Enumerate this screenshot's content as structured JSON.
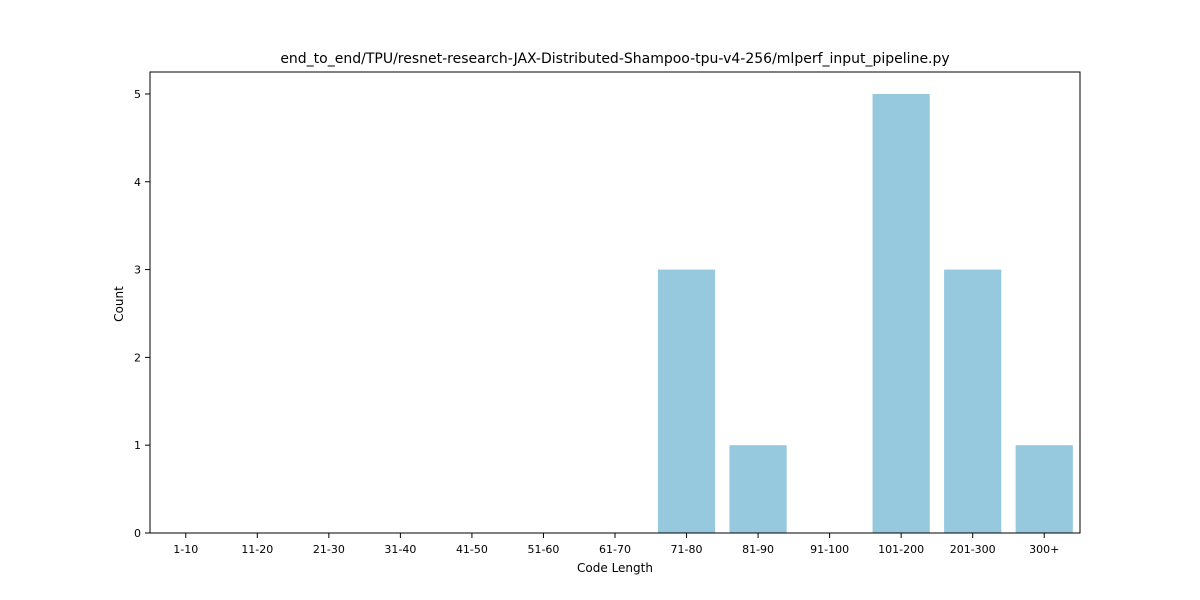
{
  "chart_data": {
    "type": "bar",
    "title": "end_to_end/TPU/resnet-research-JAX-Distributed-Shampoo-tpu-v4-256/mlperf_input_pipeline.py",
    "xlabel": "Code Length",
    "ylabel": "Count",
    "categories": [
      "1-10",
      "11-20",
      "21-30",
      "31-40",
      "41-50",
      "51-60",
      "61-70",
      "71-80",
      "81-90",
      "91-100",
      "101-200",
      "201-300",
      "300+"
    ],
    "values": [
      0,
      0,
      0,
      0,
      0,
      0,
      0,
      3,
      1,
      0,
      5,
      3,
      1
    ],
    "ylim": [
      0,
      5.25
    ],
    "yticks": [
      0,
      1,
      2,
      3,
      4,
      5
    ],
    "bar_color": "#96c9de",
    "grid": false,
    "legend": "none"
  }
}
